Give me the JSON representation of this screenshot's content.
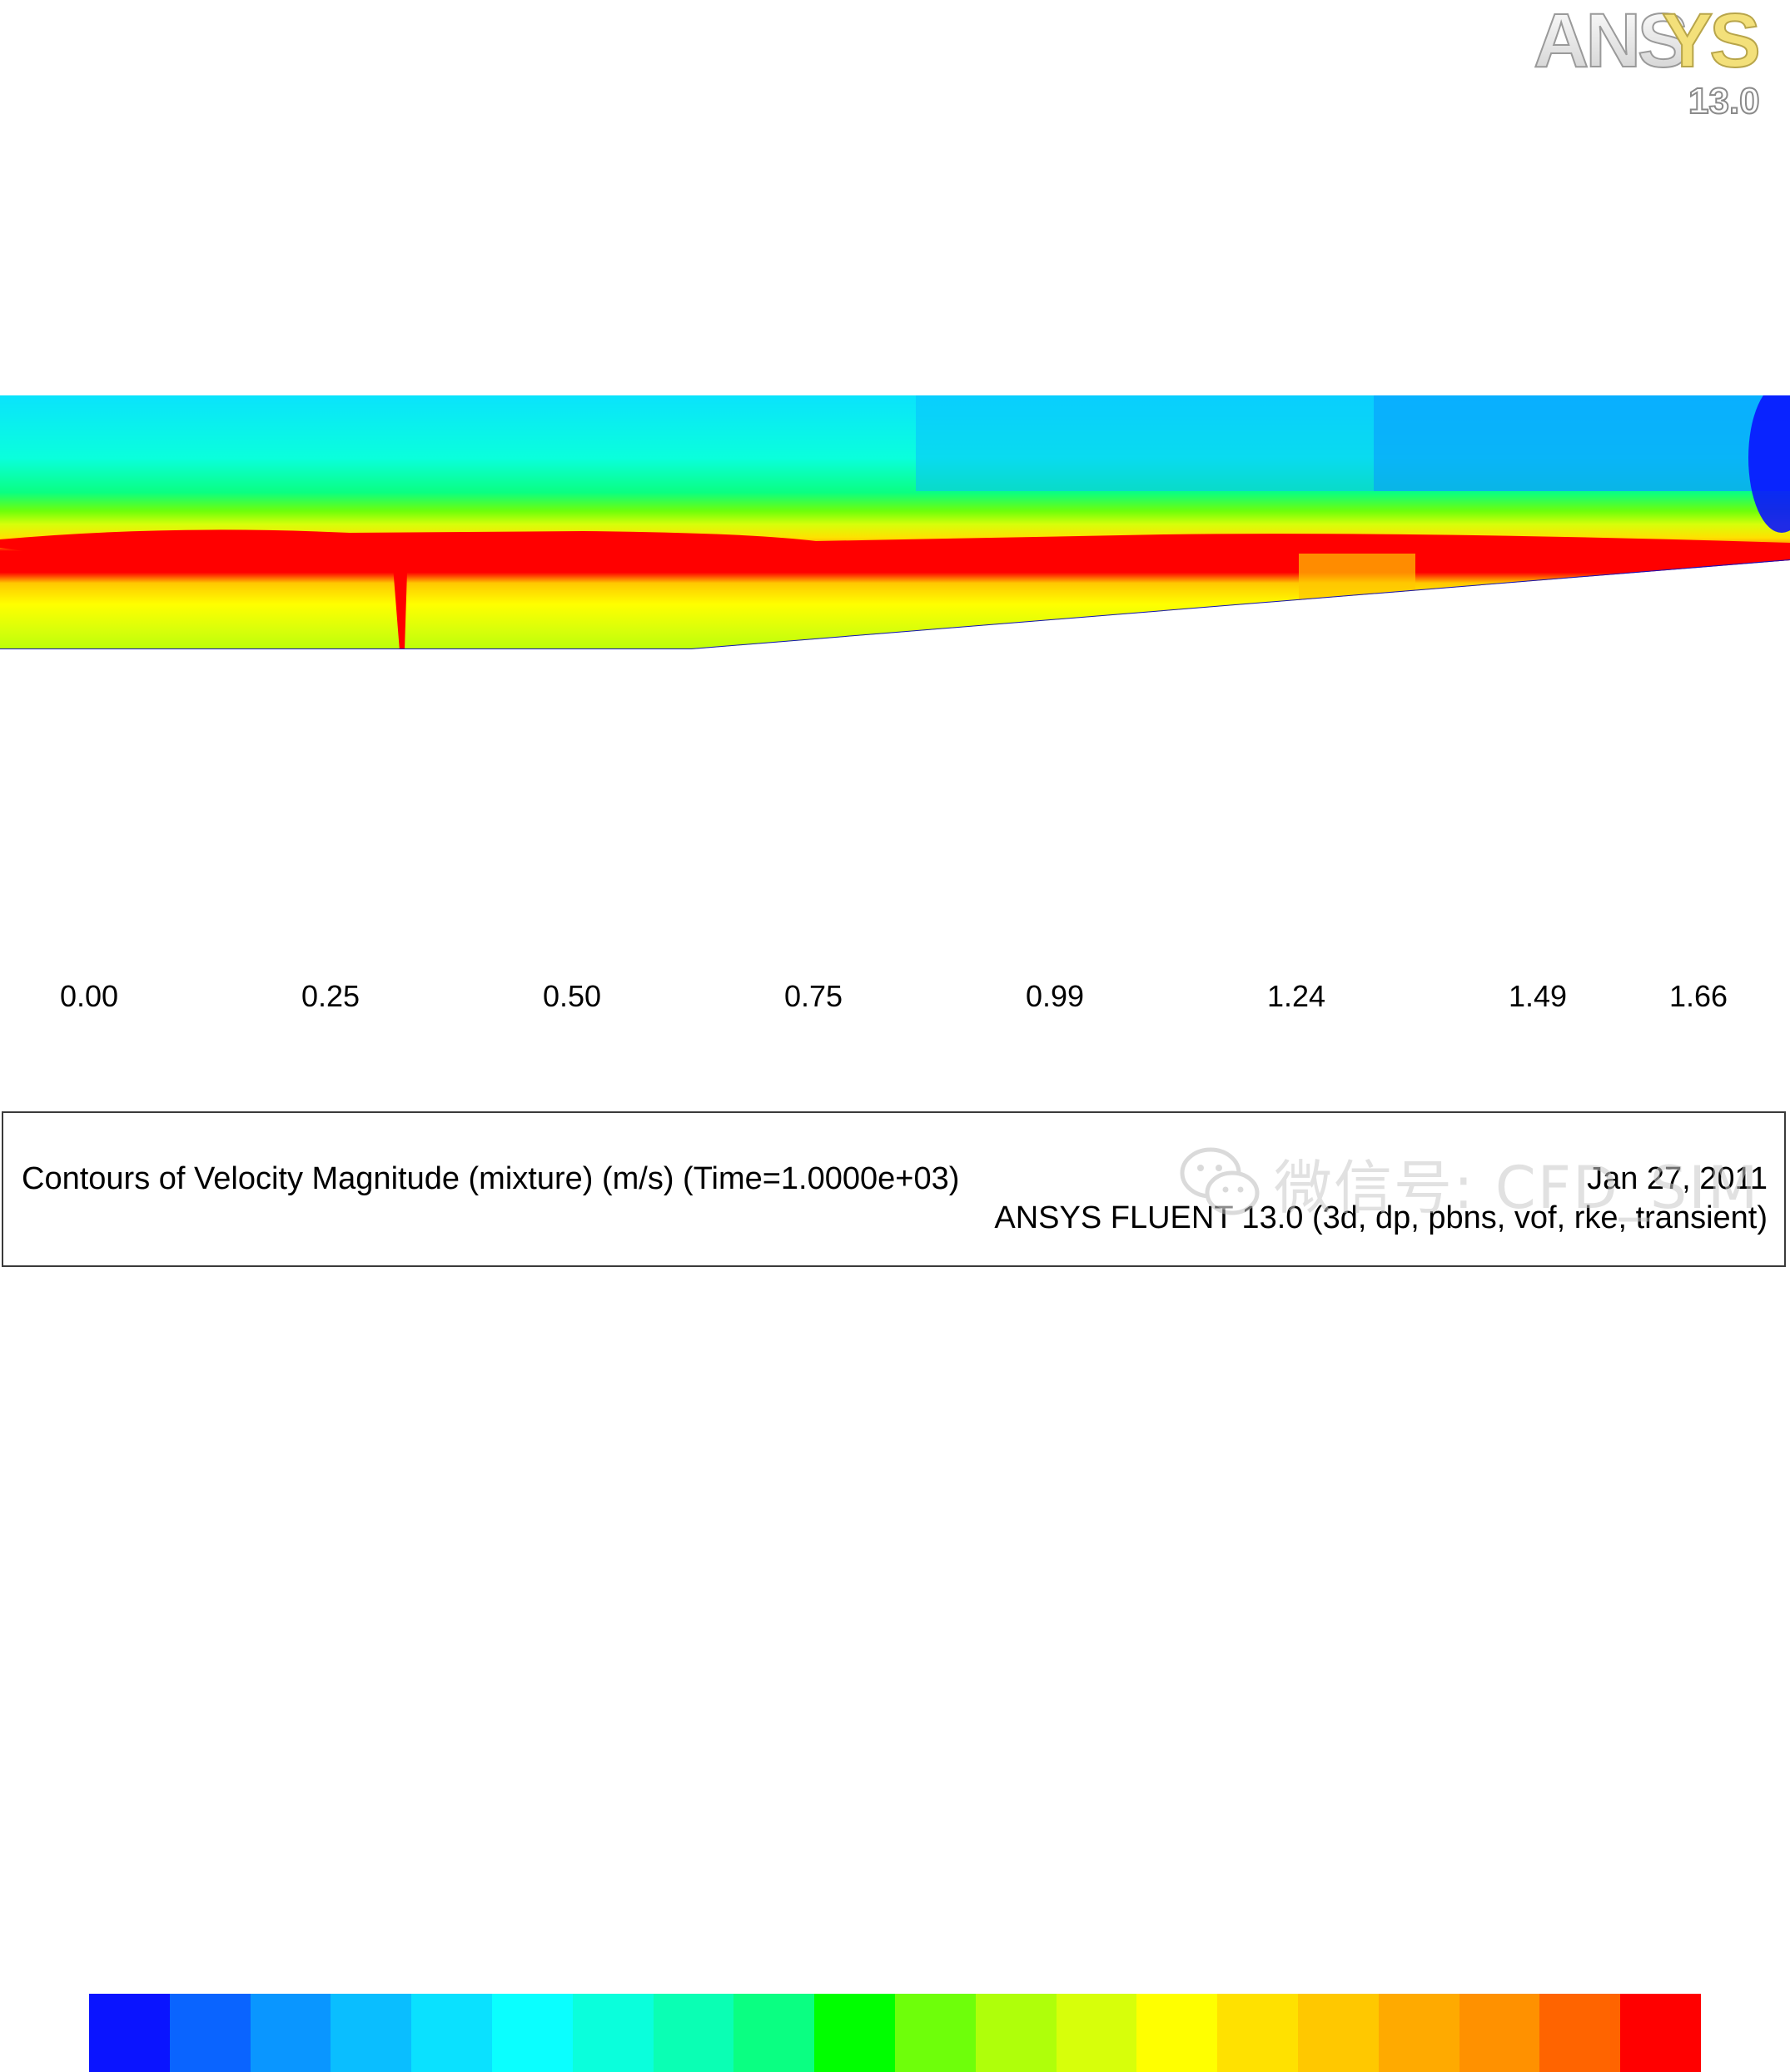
{
  "logo": {
    "brand": "ANSYS",
    "version": "13.0"
  },
  "legend": {
    "tick_labels": [
      "0.00",
      "0.25",
      "0.50",
      "0.75",
      "0.99",
      "1.24",
      "1.49",
      "1.66"
    ],
    "colors": [
      "#0a14ff",
      "#0a64ff",
      "#0a96ff",
      "#0abeff",
      "#0ae1ff",
      "#0affff",
      "#0affdc",
      "#0affb4",
      "#0aff82",
      "#00ff00",
      "#6eff0a",
      "#afff0a",
      "#d7ff0a",
      "#ffff00",
      "#ffe100",
      "#ffc800",
      "#ffaa00",
      "#ff9100",
      "#ff6400",
      "#ff0000"
    ]
  },
  "info": {
    "caption": "Contours of Velocity Magnitude (mixture)  (m/s)  (Time=1.0000e+03)",
    "date": "Jan 27, 2011",
    "solver": "ANSYS FLUENT 13.0 (3d, dp, pbns, vof, rke, transient)"
  },
  "watermark": {
    "text": "微信号: CFD_SIM"
  }
}
